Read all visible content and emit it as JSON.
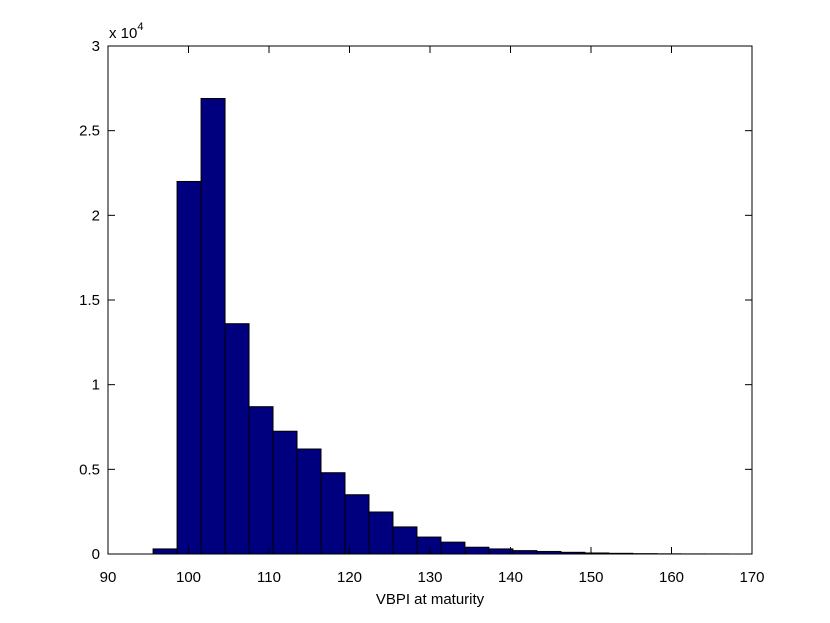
{
  "chart_data": {
    "type": "histogram",
    "xlabel": "VBPI at maturity",
    "y_multiplier_base": "x 10",
    "y_multiplier_exponent": "4",
    "bins": [
      95.6,
      98.58,
      101.56,
      104.54,
      107.52,
      110.5,
      113.48,
      116.46,
      119.44,
      122.42,
      125.4,
      128.38,
      131.36,
      134.34,
      137.32,
      140.3,
      143.28,
      146.26,
      149.24,
      152.22,
      155.2,
      158.18,
      161.16,
      164.14,
      167.12
    ],
    "counts": [
      300,
      22000,
      26900,
      13600,
      8700,
      7250,
      6200,
      4800,
      3500,
      2480,
      1600,
      1000,
      700,
      400,
      300,
      200,
      150,
      100,
      60,
      40,
      20,
      10,
      5,
      3
    ],
    "color": "#00007f",
    "xlim": [
      90,
      170
    ],
    "xticks": [
      90,
      100,
      110,
      120,
      130,
      140,
      150,
      160,
      170
    ],
    "ylim": [
      0,
      30000
    ],
    "yticks": [
      0,
      {
        "value": 5000,
        "label": "0.5"
      },
      {
        "value": 10000,
        "label": "1"
      },
      {
        "value": 15000,
        "label": "1.5"
      },
      {
        "value": 20000,
        "label": "2"
      },
      {
        "value": 25000,
        "label": "2.5"
      },
      {
        "value": 30000,
        "label": "3"
      }
    ]
  }
}
